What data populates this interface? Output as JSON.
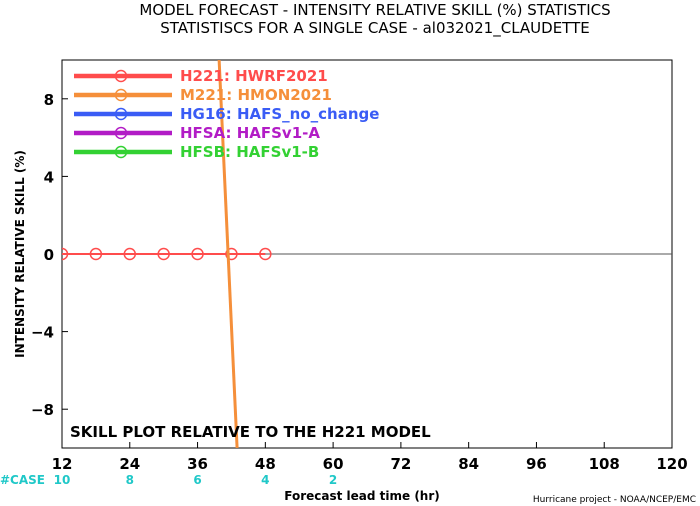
{
  "chart_data": {
    "type": "line",
    "title": "MODEL FORECAST - INTENSITY RELATIVE SKILL (%) STATISTICS",
    "subtitle": "STATISTISCS FOR A SINGLE CASE - al032021_CLAUDETTE",
    "xlabel": "Forecast lead time (hr)",
    "ylabel": "INTENSITY RELATIVE SKILL (%)",
    "xlim": [
      12,
      120
    ],
    "ylim": [
      -10,
      10
    ],
    "x_ticks": [
      12,
      24,
      36,
      48,
      60,
      72,
      84,
      96,
      108,
      120
    ],
    "y_ticks": [
      -8,
      -4,
      0,
      4,
      8
    ],
    "case_label": "#CASE",
    "case_counts": [
      {
        "x": 12,
        "label": "10"
      },
      {
        "x": 24,
        "label": "8"
      },
      {
        "x": 36,
        "label": "6"
      },
      {
        "x": 48,
        "label": "4"
      },
      {
        "x": 60,
        "label": "2"
      }
    ],
    "series": [
      {
        "name": "H221: HWRF2021",
        "color": "#ff4c4c",
        "points": [
          [
            12,
            0
          ],
          [
            18,
            0
          ],
          [
            24,
            0
          ],
          [
            30,
            0
          ],
          [
            36,
            0
          ],
          [
            42,
            0
          ],
          [
            48,
            0
          ]
        ]
      },
      {
        "name": "M221: HMON2021",
        "color": "#f58f3a",
        "points": [
          [
            39.5,
            12
          ],
          [
            43,
            -10
          ]
        ]
      },
      {
        "name": "HG16: HAFS_no_change",
        "color": "#3a5cf5",
        "points": []
      },
      {
        "name": "HFSA: HAFSv1-A",
        "color": "#b21cc6",
        "points": []
      },
      {
        "name": "HFSB: HAFSv1-B",
        "color": "#33d133",
        "points": []
      }
    ],
    "annotation": "SKILL PLOT RELATIVE TO THE H221 MODEL",
    "credit": "Hurricane project - NOAA/NCEP/EMC"
  }
}
